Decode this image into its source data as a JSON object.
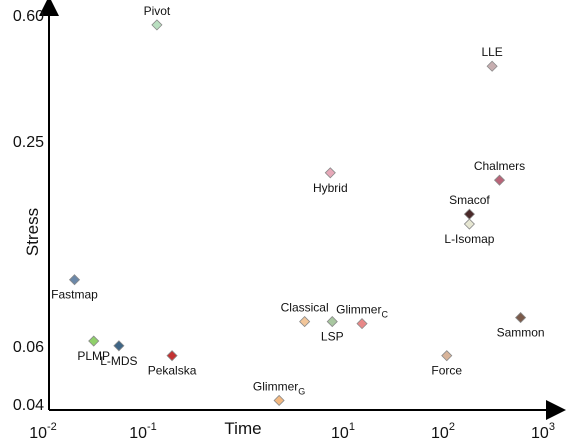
{
  "chart_data": {
    "type": "scatter",
    "xlabel": "Time",
    "ylabel": "Stress",
    "x_scale": "log",
    "y_scale": "log",
    "xlim": [
      0.01,
      1000
    ],
    "ylim": [
      0.04,
      0.6
    ],
    "x_ticks": [
      {
        "value": 0.01,
        "base": "10",
        "exp": "-2"
      },
      {
        "value": 0.1,
        "base": "10",
        "exp": "-1"
      },
      {
        "value": 10,
        "base": "10",
        "exp": "1"
      },
      {
        "value": 100,
        "base": "10",
        "exp": "2"
      },
      {
        "value": 1000,
        "base": "10",
        "exp": "3"
      }
    ],
    "y_ticks": [
      {
        "value": 0.6,
        "label": "0.60"
      },
      {
        "value": 0.25,
        "label": "0.25"
      },
      {
        "value": 0.06,
        "label": "0.06"
      },
      {
        "value": 0.04,
        "label": "0.04"
      }
    ],
    "grid": false,
    "points": [
      {
        "name": "Pivot",
        "sub": "",
        "x": 0.12,
        "y": 0.56,
        "color": "#b9dfc0",
        "label_pos": "above"
      },
      {
        "name": "LLE",
        "sub": "",
        "x": 270,
        "y": 0.42,
        "color": "#c7aeb0",
        "label_pos": "above"
      },
      {
        "name": "Hybrid",
        "sub": "",
        "x": 6.5,
        "y": 0.2,
        "color": "#e6a8b8",
        "label_pos": "below"
      },
      {
        "name": "Chalmers",
        "sub": "",
        "x": 320,
        "y": 0.19,
        "color": "#b86478",
        "label_pos": "above"
      },
      {
        "name": "Smacof",
        "sub": "",
        "x": 160,
        "y": 0.15,
        "color": "#4a2a2a",
        "label_pos": "above"
      },
      {
        "name": "L-Isomap",
        "sub": "",
        "x": 160,
        "y": 0.14,
        "color": "#e6e6d2",
        "label_pos": "below"
      },
      {
        "name": "Fastmap",
        "sub": "",
        "x": 0.018,
        "y": 0.095,
        "color": "#6b88a8",
        "label_pos": "below"
      },
      {
        "name": "Classical",
        "sub": "",
        "x": 3.6,
        "y": 0.071,
        "color": "#f2c69a",
        "label_pos": "above"
      },
      {
        "name": "LSP",
        "sub": "",
        "x": 6.8,
        "y": 0.071,
        "color": "#a8c7a0",
        "label_pos": "below"
      },
      {
        "name": "Glimmer",
        "sub": "C",
        "x": 13.5,
        "y": 0.07,
        "color": "#e88888",
        "label_pos": "above"
      },
      {
        "name": "Sammon",
        "sub": "",
        "x": 520,
        "y": 0.073,
        "color": "#7a5a4a",
        "label_pos": "below"
      },
      {
        "name": "PLMP",
        "sub": "",
        "x": 0.028,
        "y": 0.062,
        "color": "#8fd06a",
        "label_pos": "below"
      },
      {
        "name": "L-MDS",
        "sub": "",
        "x": 0.05,
        "y": 0.06,
        "color": "#3f6585",
        "label_pos": "below"
      },
      {
        "name": "Pekalska",
        "sub": "",
        "x": 0.17,
        "y": 0.056,
        "color": "#c23232",
        "label_pos": "below"
      },
      {
        "name": "Force",
        "sub": "",
        "x": 95,
        "y": 0.056,
        "color": "#d8b49a",
        "label_pos": "below"
      },
      {
        "name": "Glimmer",
        "sub": "G",
        "x": 2.0,
        "y": 0.041,
        "color": "#f2b880",
        "label_pos": "above"
      }
    ]
  }
}
